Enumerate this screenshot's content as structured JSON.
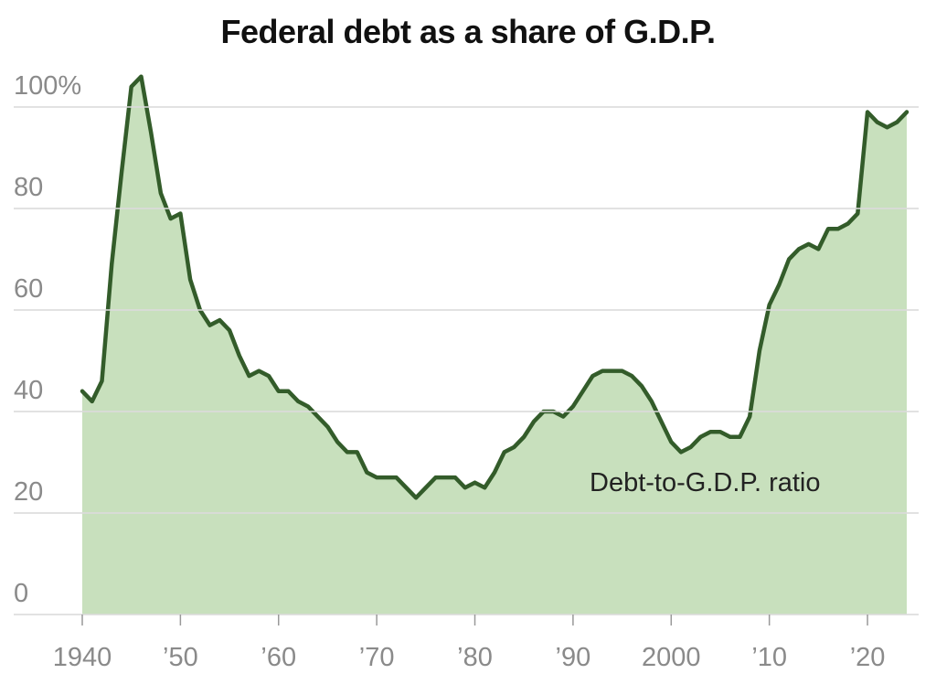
{
  "chart_data": {
    "type": "area",
    "title": "Federal debt as a share of G.D.P.",
    "annotation": "Debt-to-G.D.P. ratio",
    "ylim": [
      0,
      100
    ],
    "xlim": [
      1940,
      2024
    ],
    "y_ticks": [
      {
        "value": 100,
        "label": "100%"
      },
      {
        "value": 80,
        "label": "80"
      },
      {
        "value": 60,
        "label": "60"
      },
      {
        "value": 40,
        "label": "40"
      },
      {
        "value": 20,
        "label": "20"
      },
      {
        "value": 0,
        "label": "0"
      }
    ],
    "x_ticks": [
      {
        "value": 1940,
        "label": "1940"
      },
      {
        "value": 1950,
        "label": "’50"
      },
      {
        "value": 1960,
        "label": "’60"
      },
      {
        "value": 1970,
        "label": "’70"
      },
      {
        "value": 1980,
        "label": "’80"
      },
      {
        "value": 1990,
        "label": "’90"
      },
      {
        "value": 2000,
        "label": "2000"
      },
      {
        "value": 2010,
        "label": "’10"
      },
      {
        "value": 2020,
        "label": "’20"
      }
    ],
    "colors": {
      "line": "#335c2a",
      "fill": "#c8e0bd"
    },
    "series": [
      {
        "x": [
          1940,
          1941,
          1942,
          1943,
          1944,
          1945,
          1946,
          1947,
          1948,
          1949,
          1950,
          1951,
          1952,
          1953,
          1954,
          1955,
          1956,
          1957,
          1958,
          1959,
          1960,
          1961,
          1962,
          1963,
          1964,
          1965,
          1966,
          1967,
          1968,
          1969,
          1970,
          1971,
          1972,
          1973,
          1974,
          1975,
          1976,
          1977,
          1978,
          1979,
          1980,
          1981,
          1982,
          1983,
          1984,
          1985,
          1986,
          1987,
          1988,
          1989,
          1990,
          1991,
          1992,
          1993,
          1994,
          1995,
          1996,
          1997,
          1998,
          1999,
          2000,
          2001,
          2002,
          2003,
          2004,
          2005,
          2006,
          2007,
          2008,
          2009,
          2010,
          2011,
          2012,
          2013,
          2014,
          2015,
          2016,
          2017,
          2018,
          2019,
          2020,
          2021,
          2022,
          2023,
          2024
        ],
        "values": [
          44,
          42,
          46,
          69,
          87,
          104,
          106,
          95,
          83,
          78,
          79,
          66,
          60,
          57,
          58,
          56,
          51,
          47,
          48,
          47,
          44,
          44,
          42,
          41,
          39,
          37,
          34,
          32,
          32,
          28,
          27,
          27,
          27,
          25,
          23,
          25,
          27,
          27,
          27,
          25,
          26,
          25,
          28,
          32,
          33,
          35,
          38,
          40,
          40,
          39,
          41,
          44,
          47,
          48,
          48,
          48,
          47,
          45,
          42,
          38,
          34,
          32,
          33,
          35,
          36,
          36,
          35,
          35,
          39,
          52,
          61,
          65,
          70,
          72,
          73,
          72,
          76,
          76,
          77,
          79,
          99,
          97,
          96,
          97,
          99
        ]
      }
    ]
  }
}
